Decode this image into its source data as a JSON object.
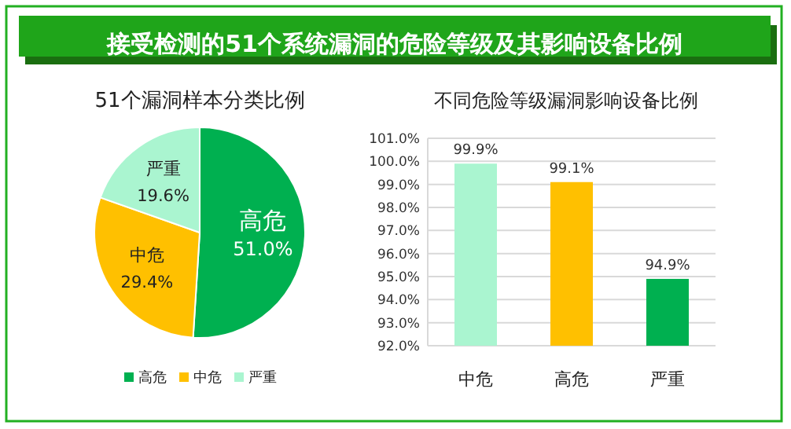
{
  "chart_data": [
    {
      "type": "other",
      "title": "接受检测的51个系统漏洞的危险等级及其影响设备比例"
    },
    {
      "type": "pie",
      "title": "51个漏洞样本分类比例",
      "categories": [
        "高危",
        "中危",
        "严重"
      ],
      "values": [
        51.0,
        29.4,
        19.6
      ],
      "colors": [
        "#00b050",
        "#ffc000",
        "#aaf5d0"
      ],
      "value_labels": [
        "51.0%",
        "29.4%",
        "19.6%"
      ],
      "legend": "bottom"
    },
    {
      "type": "bar",
      "title": "不同危险等级漏洞影响设备比例",
      "categories": [
        "中危",
        "高危",
        "严重"
      ],
      "values": [
        99.9,
        99.1,
        94.9
      ],
      "colors": [
        "#aaf5d0",
        "#ffc000",
        "#00b050"
      ],
      "value_labels": [
        "99.9%",
        "99.1%",
        "94.9%"
      ],
      "ylim": [
        92,
        101
      ],
      "yticks": [
        {
          "value": 92,
          "label": "92.0%"
        },
        {
          "value": 93,
          "label": "93.0%"
        },
        {
          "value": 94,
          "label": "94.0%"
        },
        {
          "value": 95,
          "label": "95.0%"
        },
        {
          "value": 96,
          "label": "96.0%"
        },
        {
          "value": 97,
          "label": "97.0%"
        },
        {
          "value": 98,
          "label": "98.0%"
        },
        {
          "value": 99,
          "label": "99.0%"
        },
        {
          "value": 100,
          "label": "100.0%"
        },
        {
          "value": 101,
          "label": "101.0%"
        }
      ],
      "grid": "y"
    }
  ]
}
